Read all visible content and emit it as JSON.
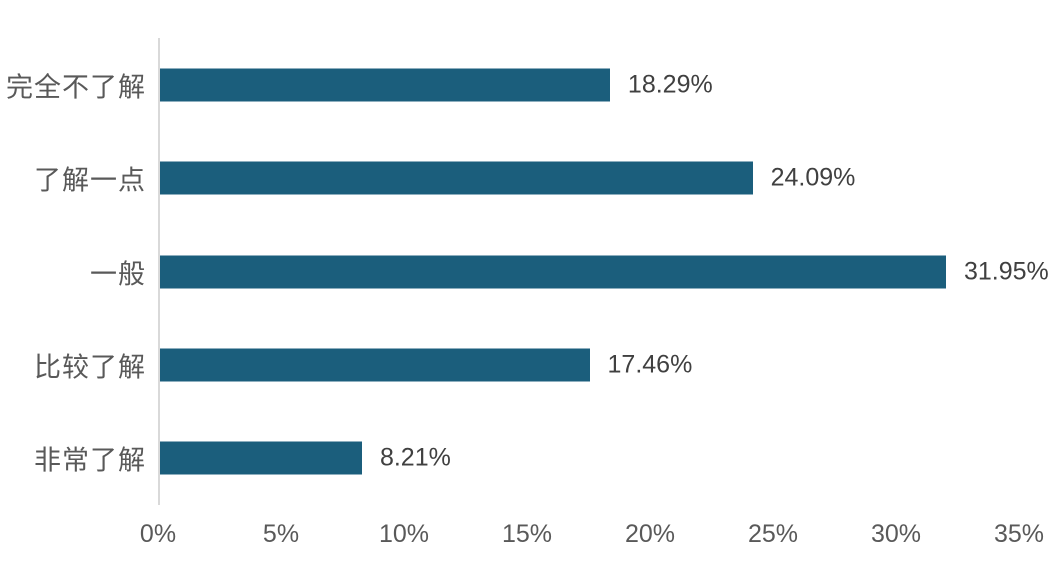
{
  "chart_data": {
    "type": "bar",
    "orientation": "horizontal",
    "title": "",
    "xlabel": "",
    "ylabel": "",
    "categories": [
      "完全不了解",
      "了解一点",
      "一般",
      "比较了解",
      "非常了解"
    ],
    "values": [
      18.29,
      24.09,
      31.95,
      17.46,
      8.21
    ],
    "data_labels": [
      "18.29%",
      "24.09%",
      "31.95%",
      "17.46%",
      "8.21%"
    ],
    "xlim": [
      0,
      35
    ],
    "x_tick_values": [
      0,
      5,
      10,
      15,
      20,
      25,
      30,
      35
    ],
    "x_tick_labels": [
      "0%",
      "5%",
      "10%",
      "15%",
      "20%",
      "25%",
      "30%",
      "35%"
    ],
    "grid": false,
    "legend": "none",
    "colors": {
      "bar": "#1b5e7c",
      "axis_line": "#d9d9d9",
      "category_label": "#595959",
      "data_label": "#404040",
      "tick_label": "#595959",
      "background": "#ffffff"
    }
  }
}
